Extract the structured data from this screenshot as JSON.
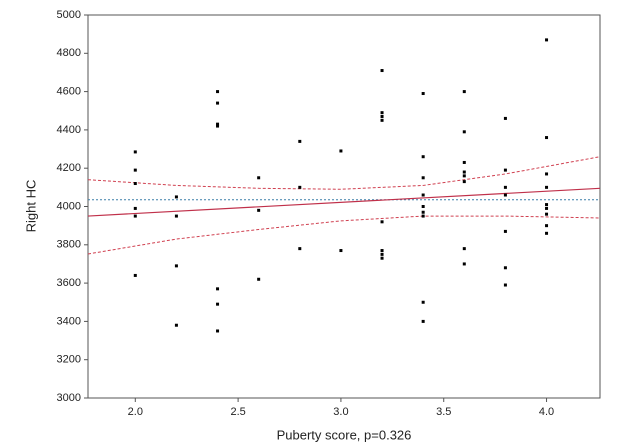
{
  "chart_data": {
    "type": "scatter",
    "x_label": "Puberty score,  p=0.326",
    "y_label": "Right HC",
    "xlim": [
      1.77,
      4.26
    ],
    "ylim": [
      3000,
      5000
    ],
    "xticks": [
      {
        "value": 2,
        "label": "2.0"
      },
      2.5,
      {
        "value": 3,
        "label": "3.0"
      },
      3.5,
      {
        "value": 4,
        "label": "4.0"
      }
    ],
    "yticks": [
      3000,
      3200,
      3400,
      3600,
      3800,
      4000,
      4200,
      4400,
      4600,
      4800,
      5000
    ],
    "grid": false,
    "color": "#000000",
    "x": [
      2.0,
      2.0,
      2.0,
      2.0,
      2.0,
      2.0,
      2.2,
      2.2,
      2.2,
      2.2,
      2.4,
      2.4,
      2.4,
      2.4,
      2.4,
      2.4,
      2.4,
      2.6,
      2.6,
      2.6,
      2.8,
      2.8,
      2.8,
      3.0,
      3.0,
      3.2,
      3.2,
      3.2,
      3.2,
      3.2,
      3.2,
      3.2,
      3.2,
      3.4,
      3.4,
      3.4,
      3.4,
      3.4,
      3.4,
      3.4,
      3.4,
      3.4,
      3.6,
      3.6,
      3.6,
      3.6,
      3.6,
      3.6,
      3.6,
      3.6,
      3.8,
      3.8,
      3.8,
      3.8,
      3.8,
      3.8,
      3.8,
      4.0,
      4.0,
      4.0,
      4.0,
      4.0,
      4.0,
      4.0,
      4.0,
      4.0
    ],
    "values": [
      4285,
      4190,
      4120,
      3990,
      3950,
      3640,
      4050,
      3950,
      3690,
      3380,
      4600,
      4540,
      4430,
      4420,
      3570,
      3490,
      3350,
      4150,
      3980,
      3620,
      4340,
      4100,
      3780,
      4290,
      3770,
      4710,
      4490,
      4470,
      4450,
      3920,
      3770,
      3750,
      3730,
      4590,
      4260,
      4150,
      4060,
      4000,
      3970,
      3950,
      3500,
      3400,
      4600,
      4390,
      4230,
      4180,
      4160,
      4130,
      3780,
      3700,
      4460,
      4190,
      4100,
      4060,
      3870,
      3680,
      3590,
      4870,
      4360,
      4170,
      4100,
      4010,
      3990,
      3960,
      3900,
      3860
    ],
    "regression_line": {
      "color": "#c0304a",
      "x": [
        1.77,
        4.26
      ],
      "values": [
        3950,
        4095
      ]
    },
    "confidence_upper": {
      "color": "#d04050",
      "x": [
        1.77,
        2.2,
        2.6,
        3.0,
        3.4,
        3.8,
        4.26
      ],
      "values": [
        4140,
        4110,
        4095,
        4090,
        4110,
        4170,
        4260
      ]
    },
    "confidence_lower": {
      "color": "#d04050",
      "x": [
        1.77,
        2.2,
        2.6,
        3.0,
        3.4,
        3.8,
        4.26
      ],
      "values": [
        3752,
        3830,
        3880,
        3925,
        3950,
        3950,
        3940
      ]
    },
    "mean_line": {
      "color": "#3a7fa8",
      "x": [
        1.77,
        4.26
      ],
      "values": [
        4035,
        4035
      ]
    }
  }
}
